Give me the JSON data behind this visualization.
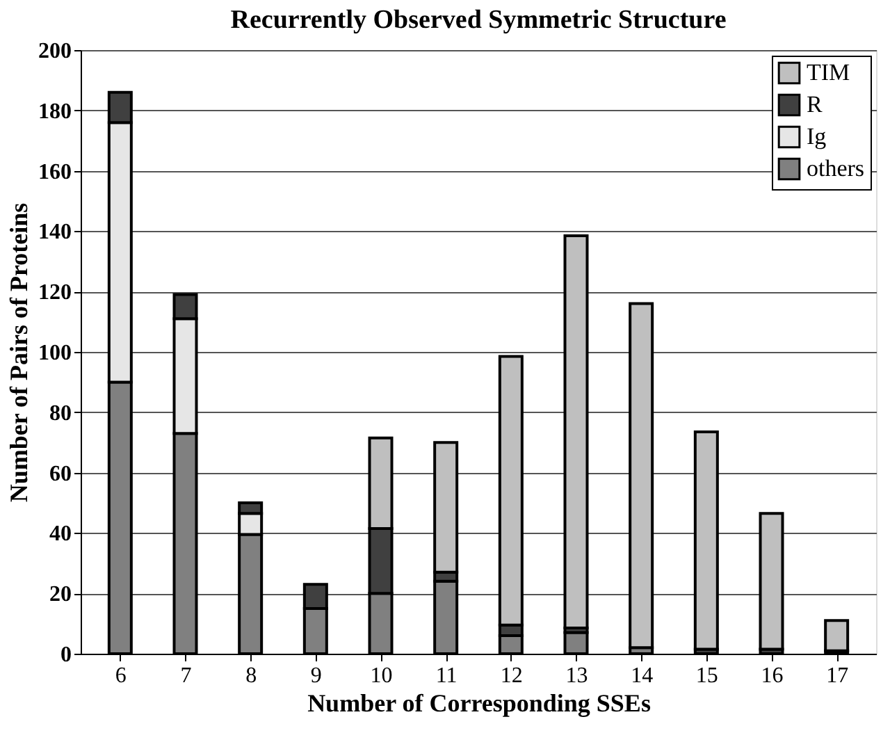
{
  "chart_data": {
    "type": "bar",
    "title": "Recurrently Observed Symmetric Structure",
    "xlabel": "Number of Corresponding SSEs",
    "ylabel": "Number of Pairs of Proteins",
    "categories": [
      "6",
      "7",
      "8",
      "9",
      "10",
      "11",
      "12",
      "13",
      "14",
      "15",
      "16",
      "17"
    ],
    "stacked": true,
    "series": [
      {
        "name": "others",
        "color": "#808080",
        "values": [
          90,
          73,
          39.5,
          15,
          20,
          24,
          6,
          7,
          2,
          null,
          null,
          null
        ]
      },
      {
        "name": "Ig",
        "color": "#e6e6e6",
        "values": [
          86,
          38,
          7,
          null,
          null,
          null,
          null,
          null,
          null,
          null,
          null,
          null
        ]
      },
      {
        "name": "R",
        "color": "#404040",
        "values": [
          10,
          8,
          3.5,
          8,
          21.5,
          3,
          3.5,
          1.5,
          null,
          1.5,
          1.5,
          1
        ]
      },
      {
        "name": "TIM",
        "color": "#bfbfbf",
        "values": [
          null,
          null,
          null,
          null,
          30,
          43,
          89,
          130,
          114,
          72,
          45,
          10
        ]
      }
    ],
    "ylim": [
      0,
      200
    ],
    "yticks": [
      0,
      20,
      40,
      60,
      80,
      100,
      120,
      140,
      160,
      180,
      200
    ],
    "grid": "y",
    "legend": "top right"
  }
}
